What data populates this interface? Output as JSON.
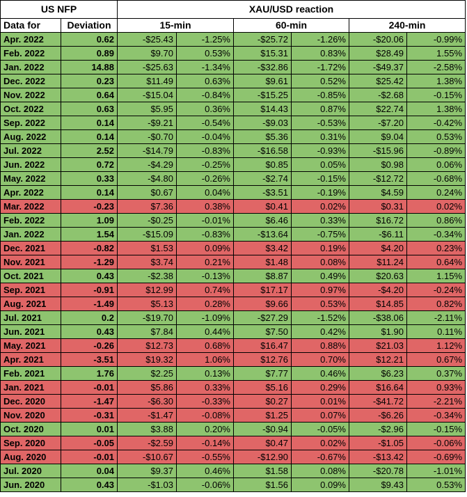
{
  "header": {
    "top": [
      "US NFP",
      "XAU/USD reaction"
    ],
    "sub": [
      "Data for",
      "Deviation",
      "15-min",
      "60-min",
      "240-min"
    ]
  },
  "table": {
    "rows": [
      {
        "color": "#8ec46f",
        "cells": [
          "Apr. 2022",
          "0.62",
          "-$25.43",
          "-1.25%",
          "-$25.72",
          "-1.26%",
          "-$20.06",
          "-0.99%"
        ]
      },
      {
        "color": "#8ec46f",
        "cells": [
          "Feb. 2022",
          "0.89",
          "$9.70",
          "0.53%",
          "$15.31",
          "0.83%",
          "$28.49",
          "1.55%"
        ]
      },
      {
        "color": "#8ec46f",
        "cells": [
          "Jan. 2022",
          "14.88",
          "-$25.63",
          "-1.34%",
          "-$32.86",
          "-1.72%",
          "-$49.37",
          "-2.58%"
        ]
      },
      {
        "color": "#8ec46f",
        "cells": [
          "Dec. 2022",
          "0.23",
          "$11.49",
          "0.63%",
          "$9.61",
          "0.52%",
          "$25.42",
          "1.38%"
        ]
      },
      {
        "color": "#8ec46f",
        "cells": [
          "Nov. 2022",
          "0.64",
          "-$15.04",
          "-0.84%",
          "-$15.25",
          "-0.85%",
          "-$2.68",
          "-0.15%"
        ]
      },
      {
        "color": "#8ec46f",
        "cells": [
          "Oct. 2022",
          "0.63",
          "$5.95",
          "0.36%",
          "$14.43",
          "0.87%",
          "$22.74",
          "1.38%"
        ]
      },
      {
        "color": "#8ec46f",
        "cells": [
          "Sep. 2022",
          "0.14",
          "-$9.21",
          "-0.54%",
          "-$9.03",
          "-0.53%",
          "-$7.20",
          "-0.42%"
        ]
      },
      {
        "color": "#8ec46f",
        "cells": [
          "Aug. 2022",
          "0.14",
          "-$0.70",
          "-0.04%",
          "$5.36",
          "0.31%",
          "$9.04",
          "0.53%"
        ]
      },
      {
        "color": "#8ec46f",
        "cells": [
          "Jul. 2022",
          "2.52",
          "-$14.79",
          "-0.83%",
          "-$16.58",
          "-0.93%",
          "-$15.96",
          "-0.89%"
        ]
      },
      {
        "color": "#8ec46f",
        "cells": [
          "Jun. 2022",
          "0.72",
          "-$4.29",
          "-0.25%",
          "$0.85",
          "0.05%",
          "$0.98",
          "0.06%"
        ]
      },
      {
        "color": "#8ec46f",
        "cells": [
          "May. 2022",
          "0.33",
          "-$4.80",
          "-0.26%",
          "-$2.74",
          "-0.15%",
          "-$12.72",
          "-0.68%"
        ]
      },
      {
        "color": "#8ec46f",
        "cells": [
          "Apr. 2022",
          "0.14",
          "$0.67",
          "0.04%",
          "-$3.51",
          "-0.19%",
          "$4.59",
          "0.24%"
        ]
      },
      {
        "color": "#e06666",
        "cells": [
          "Mar. 2022",
          "-0.23",
          "$7.36",
          "0.38%",
          "$0.41",
          "0.02%",
          "$0.31",
          "0.02%"
        ]
      },
      {
        "color": "#8ec46f",
        "cells": [
          "Feb. 2022",
          "1.09",
          "-$0.25",
          "-0.01%",
          "$6.46",
          "0.33%",
          "$16.72",
          "0.86%"
        ]
      },
      {
        "color": "#8ec46f",
        "cells": [
          "Jan. 2022",
          "1.54",
          "-$15.09",
          "-0.83%",
          "-$13.64",
          "-0.75%",
          "-$6.11",
          "-0.34%"
        ]
      },
      {
        "color": "#e06666",
        "cells": [
          "Dec. 2021",
          "-0.82",
          "$1.53",
          "0.09%",
          "$3.42",
          "0.19%",
          "$4.20",
          "0.23%"
        ]
      },
      {
        "color": "#e06666",
        "cells": [
          "Nov. 2021",
          "-1.29",
          "$3.74",
          "0.21%",
          "$1.48",
          "0.08%",
          "$11.24",
          "0.64%"
        ]
      },
      {
        "color": "#8ec46f",
        "cells": [
          "Oct. 2021",
          "0.43",
          "-$2.38",
          "-0.13%",
          "$8.87",
          "0.49%",
          "$20.63",
          "1.15%"
        ]
      },
      {
        "color": "#e06666",
        "cells": [
          "Sep. 2021",
          "-0.91",
          "$12.99",
          "0.74%",
          "$17.17",
          "0.97%",
          "-$4.20",
          "-0.24%"
        ]
      },
      {
        "color": "#e06666",
        "cells": [
          "Aug. 2021",
          "-1.49",
          "$5.13",
          "0.28%",
          "$9.66",
          "0.53%",
          "$14.85",
          "0.82%"
        ]
      },
      {
        "color": "#8ec46f",
        "cells": [
          "Jul. 2021",
          "0.2",
          "-$19.70",
          "-1.09%",
          "-$27.29",
          "-1.52%",
          "-$38.06",
          "-2.11%"
        ]
      },
      {
        "color": "#8ec46f",
        "cells": [
          "Jun. 2021",
          "0.43",
          "$7.84",
          "0.44%",
          "$7.50",
          "0.42%",
          "$1.90",
          "0.11%"
        ]
      },
      {
        "color": "#e06666",
        "cells": [
          "May. 2021",
          "-0.26",
          "$12.73",
          "0.68%",
          "$16.47",
          "0.88%",
          "$21.03",
          "1.12%"
        ]
      },
      {
        "color": "#e06666",
        "cells": [
          "Apr. 2021",
          "-3.51",
          "$19.32",
          "1.06%",
          "$12.76",
          "0.70%",
          "$12.21",
          "0.67%"
        ]
      },
      {
        "color": "#8ec46f",
        "cells": [
          "Feb. 2021",
          "1.76",
          "$2.25",
          "0.13%",
          "$7.77",
          "0.46%",
          "$6.23",
          "0.37%"
        ]
      },
      {
        "color": "#e06666",
        "cells": [
          "Jan. 2021",
          "-0.01",
          "$5.86",
          "0.33%",
          "$5.16",
          "0.29%",
          "$16.64",
          "0.93%"
        ]
      },
      {
        "color": "#e06666",
        "cells": [
          "Dec. 2020",
          "-1.47",
          "-$6.30",
          "-0.33%",
          "$0.27",
          "0.01%",
          "-$41.72",
          "-2.21%"
        ]
      },
      {
        "color": "#e06666",
        "cells": [
          "Nov. 2020",
          "-0.31",
          "-$1.47",
          "-0.08%",
          "$1.25",
          "0.07%",
          "-$6.26",
          "-0.34%"
        ]
      },
      {
        "color": "#8ec46f",
        "cells": [
          "Oct. 2020",
          "0.01",
          "$3.88",
          "0.20%",
          "-$0.94",
          "-0.05%",
          "-$2.96",
          "-0.15%"
        ]
      },
      {
        "color": "#e06666",
        "cells": [
          "Sep. 2020",
          "-0.05",
          "-$2.59",
          "-0.14%",
          "$0.47",
          "0.02%",
          "-$1.05",
          "-0.06%"
        ]
      },
      {
        "color": "#e06666",
        "cells": [
          "Aug. 2020",
          "-0.01",
          "-$10.67",
          "-0.55%",
          "-$12.90",
          "-0.67%",
          "-$13.42",
          "-0.69%"
        ]
      },
      {
        "color": "#8ec46f",
        "cells": [
          "Jul. 2020",
          "0.04",
          "$9.37",
          "0.46%",
          "$1.58",
          "0.08%",
          "-$20.78",
          "-1.01%"
        ]
      },
      {
        "color": "#8ec46f",
        "cells": [
          "Jun. 2020",
          "0.43",
          "-$1.03",
          "-0.06%",
          "$1.56",
          "0.09%",
          "$9.43",
          "0.53%"
        ]
      }
    ]
  }
}
